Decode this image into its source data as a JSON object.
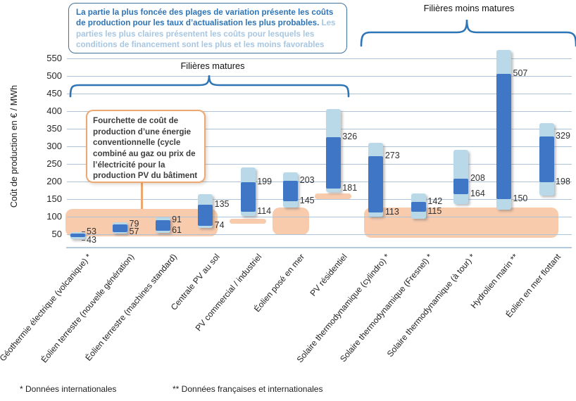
{
  "colors": {
    "bar_dark": "#3F77C6",
    "bar_light": "#B9D9E8",
    "reference_band": "#F8CBAD",
    "callout_border": "#ECA870",
    "annotation_border": "#41719C",
    "annotation_text_dark": "#2E74B5",
    "annotation_text_light": "#A7C6E2",
    "brace": "#2E75B6",
    "gridline": "#AEC3D8"
  },
  "annotation_box": {
    "text_dark": "La partie la plus foncée des plages de variation présente les coûts de production pour les taux d’actualisation les plus probables.",
    "text_light": " Les parties les plus claires présentent les coûts pour lesquels les conditions de financement sont les plus et les moins favorables"
  },
  "group_labels": {
    "mature": "Filières matures",
    "less_mature": "Filières moins matures"
  },
  "callout": {
    "text": "Fourchette de coût de production d’une énergie conventionnelle (cycle combiné au gaz ou prix de l’électricité pour la production PV du bâtiment"
  },
  "footnotes": {
    "single": "* Données internationales",
    "double": "** Données françaises et internationales"
  },
  "chart_data": {
    "type": "bar",
    "subtype": "floating-range-bars",
    "title": "",
    "xlabel": "",
    "ylabel": "Coût de production en € / MWh",
    "ylim": [
      0,
      575
    ],
    "yticks": [
      50,
      100,
      150,
      200,
      250,
      300,
      350,
      400,
      450,
      500,
      550
    ],
    "grid": true,
    "series_legend": [
      {
        "name": "Coûts pour les taux d’actualisation les plus probables",
        "color": "#3F77C6"
      },
      {
        "name": "Coûts pour les conditions de financement les plus et les moins favorables",
        "color": "#B9D9E8"
      }
    ],
    "bars": [
      {
        "category": "Géothermie électrique (volcanique) *",
        "probable": [
          43,
          53
        ],
        "full": [
          36,
          57
        ],
        "label_hi": 53,
        "label_lo": 43,
        "leader": true
      },
      {
        "category": "Éolien terrestre (nouvelle génération)",
        "probable": [
          57,
          79
        ],
        "full": [
          52,
          84
        ],
        "label_hi": 79,
        "label_lo": 57,
        "leader": false
      },
      {
        "category": "Éolien terrestre (machines standard)",
        "probable": [
          61,
          91
        ],
        "full": [
          55,
          99
        ],
        "label_hi": 91,
        "label_lo": 61,
        "leader": false
      },
      {
        "category": "Centrale PV au sol",
        "probable": [
          74,
          135
        ],
        "full": [
          68,
          165
        ],
        "label_hi": 135,
        "label_lo": 74,
        "leader": false
      },
      {
        "category": "PV commercial / industriel",
        "probable": [
          114,
          199
        ],
        "full": [
          102,
          240
        ],
        "label_hi": 199,
        "label_lo": 114,
        "leader": false
      },
      {
        "category": "Éolien posé en mer",
        "probable": [
          145,
          203
        ],
        "full": [
          126,
          226
        ],
        "label_hi": 203,
        "label_lo": 145,
        "leader": false
      },
      {
        "category": "PV résidentiel",
        "probable": [
          181,
          326
        ],
        "full": [
          170,
          406
        ],
        "label_hi": 326,
        "label_lo": 181,
        "leader": false
      },
      {
        "category": "Solaire thermodynamique (cylindro) *",
        "probable": [
          113,
          273
        ],
        "full": [
          100,
          310
        ],
        "label_hi": 273,
        "label_lo": 113,
        "leader": false
      },
      {
        "category": "Solaire thermodynamique (Fresnel) *",
        "probable": [
          115,
          142
        ],
        "full": [
          95,
          166
        ],
        "label_hi": 142,
        "label_lo": 115,
        "leader": false
      },
      {
        "category": "Solaire thermodynamique (à tour) *",
        "probable": [
          164,
          208
        ],
        "full": [
          136,
          290
        ],
        "label_hi": 208,
        "label_lo": 164,
        "leader": false
      },
      {
        "category": "Hydrolien marin **",
        "probable": [
          150,
          507
        ],
        "full": [
          120,
          575
        ],
        "label_hi": 507,
        "label_lo": 150,
        "leader": false
      },
      {
        "category": "Éolien en mer flottant",
        "probable": [
          198,
          329
        ],
        "full": [
          160,
          366
        ],
        "label_hi": 329,
        "label_lo": 198,
        "leader": false
      }
    ],
    "reference_bands": [
      {
        "covers_slots": [
          0,
          3
        ],
        "range": [
          44,
          122
        ],
        "note": "fourchette énergie conventionnelle (filières matures terrestres)"
      },
      {
        "covers_slots": [
          4,
          4
        ],
        "range": [
          80,
          94
        ],
        "note": "référence PV commercial / industriel"
      },
      {
        "covers_slots": [
          5,
          5
        ],
        "range": [
          48,
          126
        ],
        "note": "référence éolien posé en mer"
      },
      {
        "covers_slots": [
          6,
          6
        ],
        "range": [
          150,
          166
        ],
        "note": "référence PV résidentiel (prix électricité bâtiment)"
      },
      {
        "covers_slots": [
          7,
          11
        ],
        "range": [
          40,
          126
        ],
        "note": "référence filières moins matures"
      }
    ]
  }
}
